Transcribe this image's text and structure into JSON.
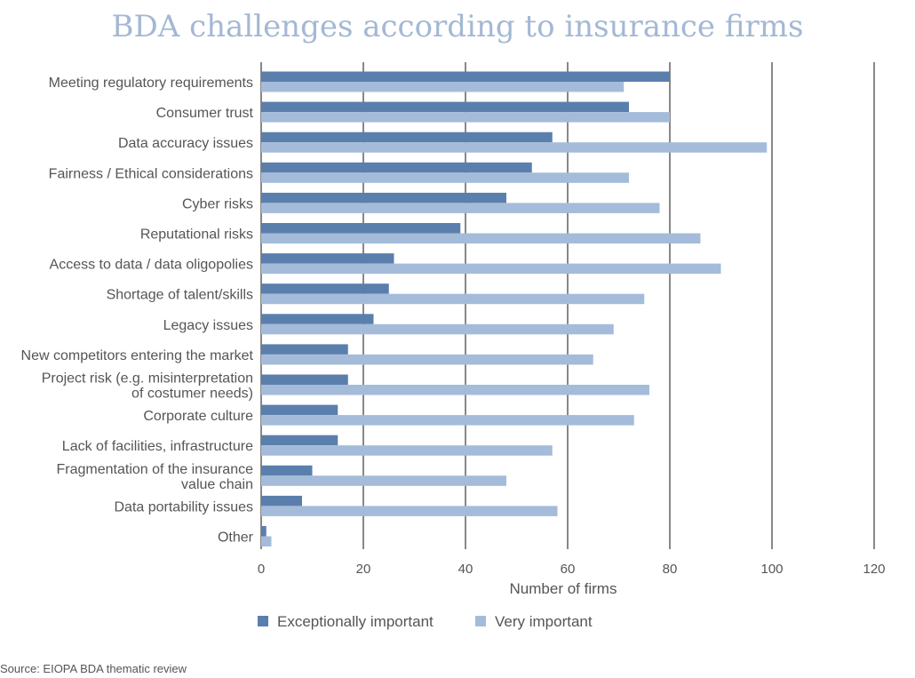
{
  "chart_data": {
    "type": "bar",
    "orientation": "horizontal",
    "title": "BDA challenges according to insurance firms",
    "xlabel": "Number of firms",
    "xlim": [
      0,
      120
    ],
    "xticks": [
      0,
      20,
      40,
      60,
      80,
      100,
      120
    ],
    "grid": "vertical",
    "legend_position": "bottom",
    "categories": [
      "Meeting regulatory requirements",
      "Consumer trust",
      "Data accuracy issues",
      "Fairness / Ethical considerations",
      "Cyber risks",
      "Reputational risks",
      "Access to data / data oligopolies",
      "Shortage of talent/skills",
      "Legacy issues",
      "New competitors entering the market",
      "Project risk (e.g. misinterpretation of costumer needs)",
      "Corporate culture",
      "Lack of facilities, infrastructure",
      "Fragmentation of the insurance value chain",
      "Data portability issues",
      "Other"
    ],
    "category_lines": [
      [
        "Meeting regulatory requirements"
      ],
      [
        "Consumer trust"
      ],
      [
        "Data accuracy issues"
      ],
      [
        "Fairness / Ethical considerations"
      ],
      [
        "Cyber risks"
      ],
      [
        "Reputational risks"
      ],
      [
        "Access to data / data oligopolies"
      ],
      [
        "Shortage of talent/skills"
      ],
      [
        "Legacy issues"
      ],
      [
        "New competitors entering the market"
      ],
      [
        "Project risk (e.g. misinterpretation",
        "of costumer needs)"
      ],
      [
        "Corporate culture"
      ],
      [
        "Lack of facilities, infrastructure"
      ],
      [
        "Fragmentation of the insurance",
        "value chain"
      ],
      [
        "Data portability issues"
      ],
      [
        "Other"
      ]
    ],
    "series": [
      {
        "name": "Exceptionally important",
        "color": "#5b7fad",
        "values": [
          80,
          72,
          57,
          53,
          48,
          39,
          26,
          25,
          22,
          17,
          17,
          15,
          15,
          10,
          8,
          1
        ]
      },
      {
        "name": "Very important",
        "color": "#a4bcd9",
        "values": [
          71,
          80,
          99,
          72,
          78,
          86,
          90,
          75,
          69,
          65,
          76,
          73,
          57,
          48,
          58,
          2
        ]
      }
    ]
  },
  "source": "Source: EIOPA BDA thematic review"
}
